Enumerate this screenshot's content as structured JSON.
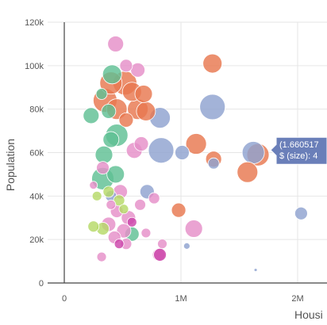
{
  "chart_data": {
    "type": "scatter",
    "xlabel": "Housi",
    "ylabel": "Population",
    "xlim": [
      -170000,
      2270000
    ],
    "ylim": [
      0,
      120000
    ],
    "x_ticks": [
      0,
      1000000,
      2000000
    ],
    "x_tick_labels": [
      "0",
      "1M",
      "2M"
    ],
    "y_ticks": [
      0,
      20000,
      40000,
      60000,
      80000,
      100000,
      120000
    ],
    "y_tick_labels": [
      "0",
      "20k",
      "40k",
      "60k",
      "80k",
      "100k",
      "120k"
    ],
    "grid": true,
    "series": [
      {
        "color": "#e8784f",
        "points": [
          {
            "x": 450000,
            "y": 80000,
            "size": 13
          },
          {
            "x": 520000,
            "y": 92000,
            "size": 15
          },
          {
            "x": 580000,
            "y": 88000,
            "size": 12
          },
          {
            "x": 630000,
            "y": 80000,
            "size": 13
          },
          {
            "x": 350000,
            "y": 84000,
            "size": 15
          },
          {
            "x": 400000,
            "y": 92000,
            "size": 14
          },
          {
            "x": 700000,
            "y": 79000,
            "size": 12
          },
          {
            "x": 680000,
            "y": 87000,
            "size": 11
          },
          {
            "x": 1270000,
            "y": 101000,
            "size": 12
          },
          {
            "x": 1130000,
            "y": 64000,
            "size": 13
          },
          {
            "x": 1280000,
            "y": 57000,
            "size": 10
          },
          {
            "x": 1570000,
            "y": 51000,
            "size": 13
          },
          {
            "x": 1660000,
            "y": 59000,
            "size": 14
          },
          {
            "x": 980000,
            "y": 33500,
            "size": 9
          },
          {
            "x": 530000,
            "y": 75000,
            "size": 9
          }
        ]
      },
      {
        "color": "#8fa2cf",
        "points": [
          {
            "x": 1270000,
            "y": 81000,
            "size": 16
          },
          {
            "x": 820000,
            "y": 76000,
            "size": 13
          },
          {
            "x": 830000,
            "y": 61000,
            "size": 16
          },
          {
            "x": 1010000,
            "y": 60000,
            "size": 9
          },
          {
            "x": 1620000,
            "y": 60000,
            "size": 14
          },
          {
            "x": 710000,
            "y": 42000,
            "size": 9
          },
          {
            "x": 400000,
            "y": 40000,
            "size": 7
          },
          {
            "x": 2030000,
            "y": 32000,
            "size": 8
          },
          {
            "x": 1050000,
            "y": 17000,
            "size": 4
          },
          {
            "x": 1640000,
            "y": 6000,
            "size": 2
          },
          {
            "x": 1280000,
            "y": 55000,
            "size": 7
          }
        ]
      },
      {
        "color": "#5fbf94",
        "points": [
          {
            "x": 410000,
            "y": 96000,
            "size": 12
          },
          {
            "x": 450000,
            "y": 68000,
            "size": 14
          },
          {
            "x": 330000,
            "y": 48000,
            "size": 14
          },
          {
            "x": 440000,
            "y": 50000,
            "size": 11
          },
          {
            "x": 340000,
            "y": 59000,
            "size": 11
          },
          {
            "x": 230000,
            "y": 77000,
            "size": 10
          },
          {
            "x": 400000,
            "y": 66000,
            "size": 10
          },
          {
            "x": 380000,
            "y": 79000,
            "size": 9
          },
          {
            "x": 580000,
            "y": 22500,
            "size": 9
          },
          {
            "x": 320000,
            "y": 87000,
            "size": 7
          }
        ]
      },
      {
        "color": "#e58fc8",
        "points": [
          {
            "x": 440000,
            "y": 110000,
            "size": 10
          },
          {
            "x": 530000,
            "y": 100000,
            "size": 8
          },
          {
            "x": 630000,
            "y": 98000,
            "size": 9
          },
          {
            "x": 660000,
            "y": 64000,
            "size": 9
          },
          {
            "x": 600000,
            "y": 61000,
            "size": 10
          },
          {
            "x": 330000,
            "y": 53000,
            "size": 8
          },
          {
            "x": 480000,
            "y": 42000,
            "size": 9
          },
          {
            "x": 650000,
            "y": 36000,
            "size": 7
          },
          {
            "x": 450000,
            "y": 33000,
            "size": 8
          },
          {
            "x": 550000,
            "y": 30000,
            "size": 9
          },
          {
            "x": 380000,
            "y": 27000,
            "size": 9
          },
          {
            "x": 510000,
            "y": 24000,
            "size": 9
          },
          {
            "x": 430000,
            "y": 21000,
            "size": 8
          },
          {
            "x": 700000,
            "y": 23000,
            "size": 6
          },
          {
            "x": 1110000,
            "y": 25000,
            "size": 11
          },
          {
            "x": 840000,
            "y": 18000,
            "size": 6
          },
          {
            "x": 810000,
            "y": 13000,
            "size": 8
          },
          {
            "x": 320000,
            "y": 12000,
            "size": 6
          },
          {
            "x": 770000,
            "y": 39000,
            "size": 7
          },
          {
            "x": 400000,
            "y": 36000,
            "size": 6
          },
          {
            "x": 250000,
            "y": 45000,
            "size": 5
          },
          {
            "x": 530000,
            "y": 18000,
            "size": 7
          }
        ]
      },
      {
        "color": "#cc44aa",
        "points": [
          {
            "x": 820000,
            "y": 13000,
            "size": 8
          },
          {
            "x": 580000,
            "y": 28000,
            "size": 6
          },
          {
            "x": 470000,
            "y": 18000,
            "size": 6
          }
        ]
      },
      {
        "color": "#b6d968",
        "points": [
          {
            "x": 250000,
            "y": 26000,
            "size": 7
          },
          {
            "x": 330000,
            "y": 25000,
            "size": 8
          },
          {
            "x": 470000,
            "y": 38000,
            "size": 7
          },
          {
            "x": 510000,
            "y": 34000,
            "size": 6
          },
          {
            "x": 380000,
            "y": 42000,
            "size": 7
          },
          {
            "x": 280000,
            "y": 40000,
            "size": 6
          }
        ]
      }
    ],
    "tooltip": {
      "lines": [
        "(1.660517",
        "$ (size): 4"
      ],
      "anchor_x": 1660000,
      "anchor_y": 59000,
      "color": "#6a7fb9"
    }
  }
}
